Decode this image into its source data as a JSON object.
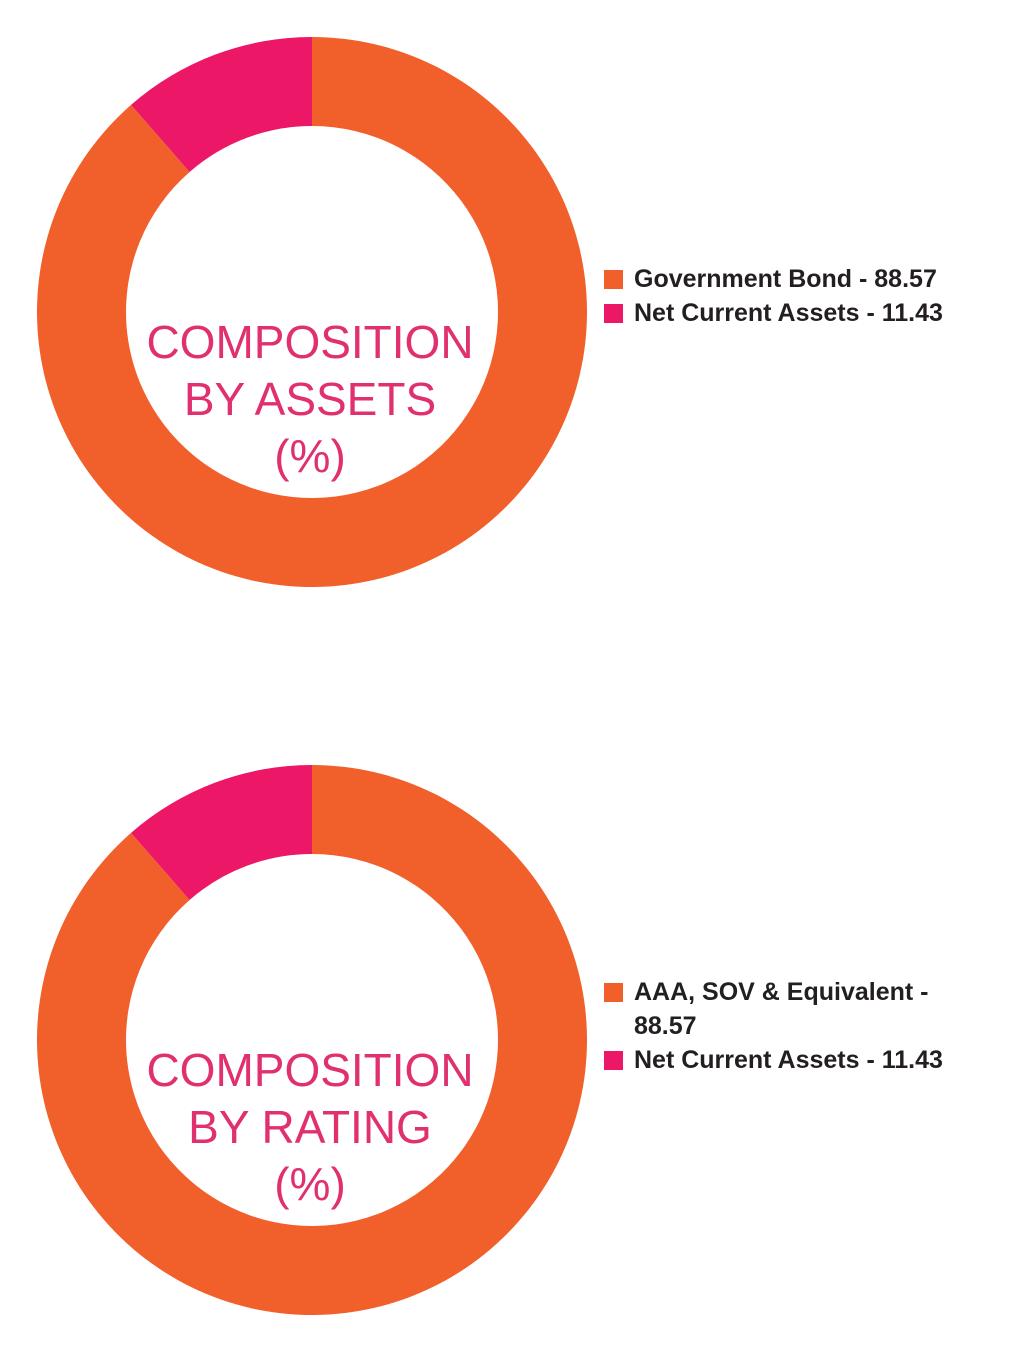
{
  "colors": {
    "orange": "#f15f2a",
    "pink": "#ec1766",
    "title": "#e0306f"
  },
  "chart_data": [
    {
      "type": "pie",
      "style": "donut",
      "title_lines": [
        "COMPOSITION",
        "BY ASSETS",
        "(%)"
      ],
      "categories": [
        "Government Bond - 88.57",
        "Net Current Assets - 11.43"
      ],
      "values": [
        88.57,
        11.43
      ],
      "colors": [
        "#f15f2a",
        "#ec1766"
      ],
      "legend_position": "right"
    },
    {
      "type": "pie",
      "style": "donut",
      "title_lines": [
        "COMPOSITION",
        "BY RATING",
        "(%)"
      ],
      "categories": [
        "AAA, SOV & Equivalent - 88.57",
        "Net Current Assets - 11.43"
      ],
      "values": [
        88.57,
        11.43
      ],
      "colors": [
        "#f15f2a",
        "#ec1766"
      ],
      "legend_position": "right"
    }
  ]
}
